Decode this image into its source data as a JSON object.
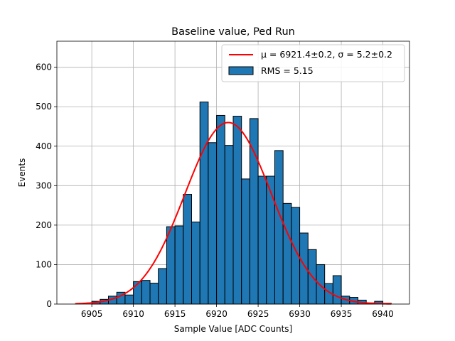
{
  "chart_data": {
    "type": "bar",
    "title": "Baseline value, Ped Run",
    "xlabel": "Sample Value [ADC Counts]",
    "ylabel": "Events",
    "xlim": [
      6900.8,
      6943.2
    ],
    "ylim": [
      0,
      666
    ],
    "xticks": [
      6905,
      6910,
      6915,
      6920,
      6925,
      6930,
      6935,
      6940
    ],
    "yticks": [
      0,
      100,
      200,
      300,
      400,
      500,
      600
    ],
    "grid": true,
    "legend_position": "top-right",
    "colors": {
      "bar": "#1f77b4",
      "fit": "#ff0000"
    },
    "histogram": {
      "name": "RMS = 5.15",
      "bin_start": 6905,
      "bin_width": 1,
      "values": [
        7,
        12,
        20,
        30,
        23,
        57,
        60,
        53,
        90,
        196,
        198,
        278,
        208,
        512,
        409,
        478,
        402,
        476,
        317,
        470,
        324,
        324,
        389,
        255,
        245,
        180,
        138,
        100,
        52,
        72,
        20,
        17,
        10,
        3,
        7,
        2
      ]
    },
    "fit": {
      "name": "μ = 6921.4±0.2, σ = 5.2±0.2",
      "mu": 6921.4,
      "sigma": 5.2,
      "amplitude": 460,
      "x_range": [
        6903,
        6941
      ]
    }
  }
}
